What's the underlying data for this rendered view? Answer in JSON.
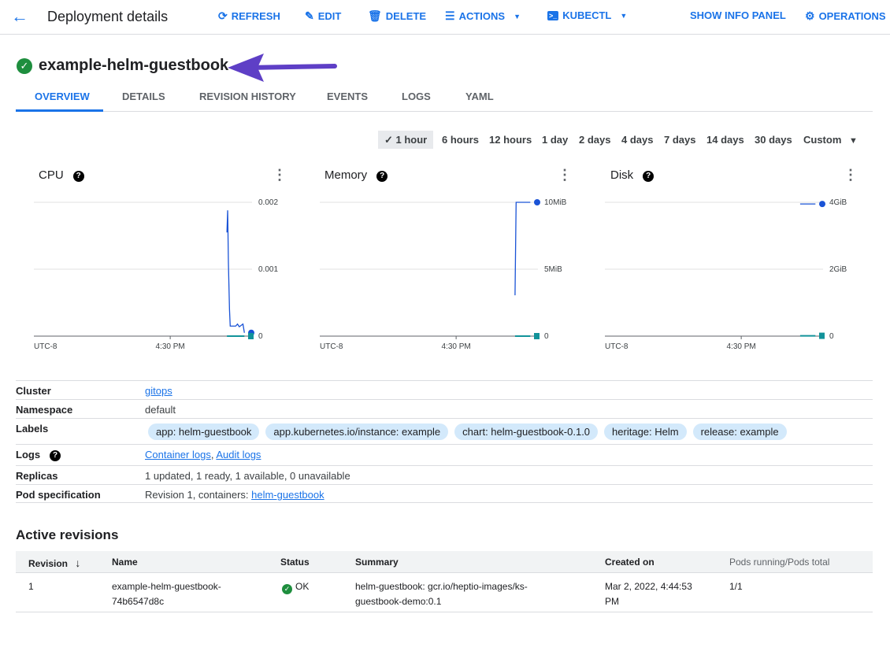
{
  "header": {
    "title": "Deployment details",
    "back_icon": "arrow-left-icon",
    "actions": [
      {
        "label": "REFRESH",
        "icon": "refresh-icon"
      },
      {
        "label": "EDIT",
        "icon": "pencil-icon"
      },
      {
        "label": "DELETE",
        "icon": "trash-icon"
      },
      {
        "label": "ACTIONS",
        "icon": "list-icon"
      },
      {
        "label": "KUBECTL",
        "icon": "terminal-icon"
      },
      {
        "label": "SHOW INFO PANEL"
      },
      {
        "label": "OPERATIONS",
        "icon": "operations-icon"
      }
    ]
  },
  "resource": {
    "name": "example-helm-guestbook",
    "status_color": "#1e8e3e",
    "annotation_arrow_color": "#5e3fc6"
  },
  "tabs": [
    "OVERVIEW",
    "DETAILS",
    "REVISION HISTORY",
    "EVENTS",
    "LOGS",
    "YAML"
  ],
  "time_ranges": {
    "selected": "1 hour",
    "options": [
      "1 hour",
      "6 hours",
      "12 hours",
      "1 day",
      "2 days",
      "4 days",
      "7 days",
      "14 days",
      "30 days",
      "Custom"
    ]
  },
  "charts": [
    {
      "title": "CPU",
      "yticks": [
        {
          "v": 0,
          "label": "0"
        },
        {
          "v": 0.001,
          "label": "0.001"
        },
        {
          "v": 0.002,
          "label": "0.002"
        }
      ],
      "ymax": 0.002,
      "xticks": [
        "UTC-8",
        "4:30 PM"
      ],
      "series": [
        {
          "color": "#1a53d6",
          "points": [
            [
              "16:45:36",
              0.00155
            ],
            [
              "16:45:48",
              0.00188
            ],
            [
              "16:46:00",
              0.0011
            ],
            [
              "16:46:18",
              0.0004
            ],
            [
              "16:46:30",
              0.00015
            ],
            [
              "16:48:00",
              0.00015
            ],
            [
              "16:48:30",
              0.00018
            ],
            [
              "16:49:00",
              0.00014
            ],
            [
              "16:50:00",
              0.00018
            ],
            [
              "16:50:24",
              5e-05
            ]
          ]
        },
        {
          "color": "#12939a",
          "points": [
            [
              "16:45:36",
              0
            ],
            [
              "16:50:24",
              0
            ]
          ]
        }
      ]
    },
    {
      "title": "Memory",
      "yticks": [
        {
          "v": 0,
          "label": "0"
        },
        {
          "v": 5,
          "label": "5MiB"
        },
        {
          "v": 10,
          "label": "10MiB"
        }
      ],
      "ymax": 10,
      "xticks": [
        "UTC-8",
        "4:30 PM"
      ],
      "series": [
        {
          "color": "#1a53d6",
          "points": [
            [
              "16:46:12",
              3.05
            ],
            [
              "16:46:30",
              10
            ],
            [
              "16:50:24",
              10
            ]
          ]
        },
        {
          "color": "#12939a",
          "points": [
            [
              "16:46:12",
              0
            ],
            [
              "16:50:24",
              0
            ]
          ]
        }
      ]
    },
    {
      "title": "Disk",
      "yticks": [
        {
          "v": 0,
          "label": "0"
        },
        {
          "v": 2,
          "label": "2GiB"
        },
        {
          "v": 4,
          "label": "4GiB"
        }
      ],
      "ymax": 4,
      "xticks": [
        "UTC-8",
        "4:30 PM"
      ],
      "series": [
        {
          "color": "#1a53d6",
          "points": [
            [
              "16:46:12",
              3.95
            ],
            [
              "16:50:24",
              3.95
            ]
          ]
        },
        {
          "color": "#12939a",
          "points": [
            [
              "16:46:12",
              0.01
            ],
            [
              "16:50:24",
              0.01
            ]
          ]
        }
      ]
    }
  ],
  "info": {
    "cluster_label": "Cluster",
    "cluster": "gitops",
    "namespace_label": "Namespace",
    "namespace": "default",
    "labels_label": "Labels",
    "labels": [
      "app: helm-guestbook",
      "app.kubernetes.io/instance: example",
      "chart: helm-guestbook-0.1.0",
      "heritage: Helm",
      "release: example"
    ],
    "logs_label": "Logs",
    "container_logs": "Container logs",
    "audit_logs": "Audit logs",
    "replicas_label": "Replicas",
    "replicas": "1 updated, 1 ready, 1 available, 0 unavailable",
    "pod_spec_label": "Pod specification",
    "pod_spec_prefix": "Revision 1, containers: ",
    "pod_spec_link": "helm-guestbook"
  },
  "revisions": {
    "title": "Active revisions",
    "columns": [
      "Revision",
      "Name",
      "Status",
      "Summary",
      "Created on",
      "Pods running/Pods total"
    ],
    "rows": [
      {
        "revision": "1",
        "name_1": "example-helm-guestbook-",
        "name_2": "74b6547d8c",
        "status": "OK",
        "summary_1": "helm-guestbook: gcr.io/heptio-images/ks-",
        "summary_2": "guestbook-demo:0.1",
        "created_1": "Mar 2, 2022, 4:44:53",
        "created_2": "PM",
        "pods": "1/1"
      }
    ]
  }
}
